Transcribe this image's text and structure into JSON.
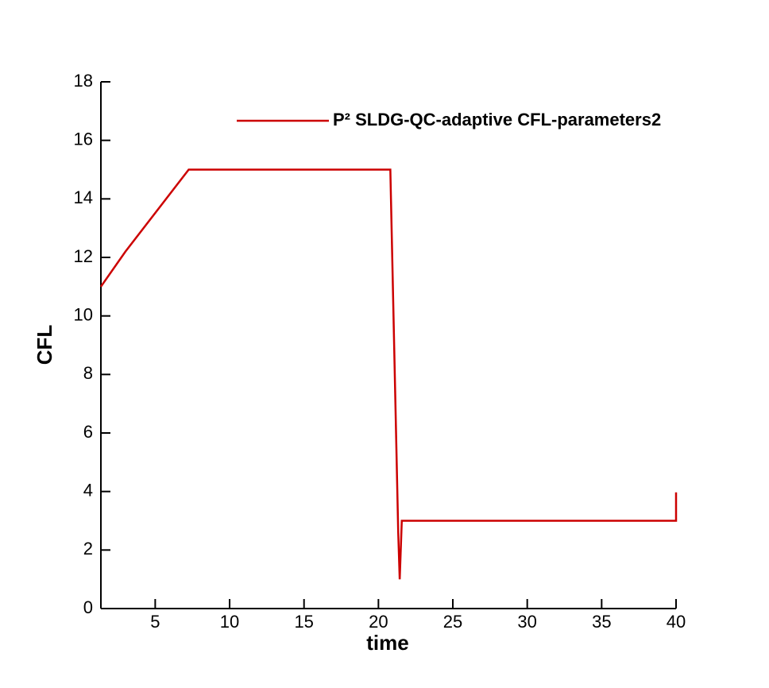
{
  "chart_data": {
    "type": "line",
    "x_label": "time",
    "y_label": "CFL",
    "x": [
      1.35,
      3,
      7.25,
      20.8,
      21.33,
      21.43,
      21.57,
      40,
      40
    ],
    "series": [
      {
        "name": "P² SLDG-QC-adaptive CFL-parameters2",
        "color": "#cc0000",
        "values": [
          11,
          12.2,
          15,
          15,
          2.6,
          1,
          3,
          3,
          3.97
        ]
      }
    ],
    "xlim": [
      1.35,
      40
    ],
    "xticks": [
      5,
      10,
      15,
      20,
      25,
      30,
      35,
      40
    ],
    "ylim": [
      0,
      18
    ],
    "yticks": [
      0,
      2,
      4,
      6,
      8,
      10,
      12,
      14,
      16,
      18
    ],
    "legend": "top-right"
  }
}
